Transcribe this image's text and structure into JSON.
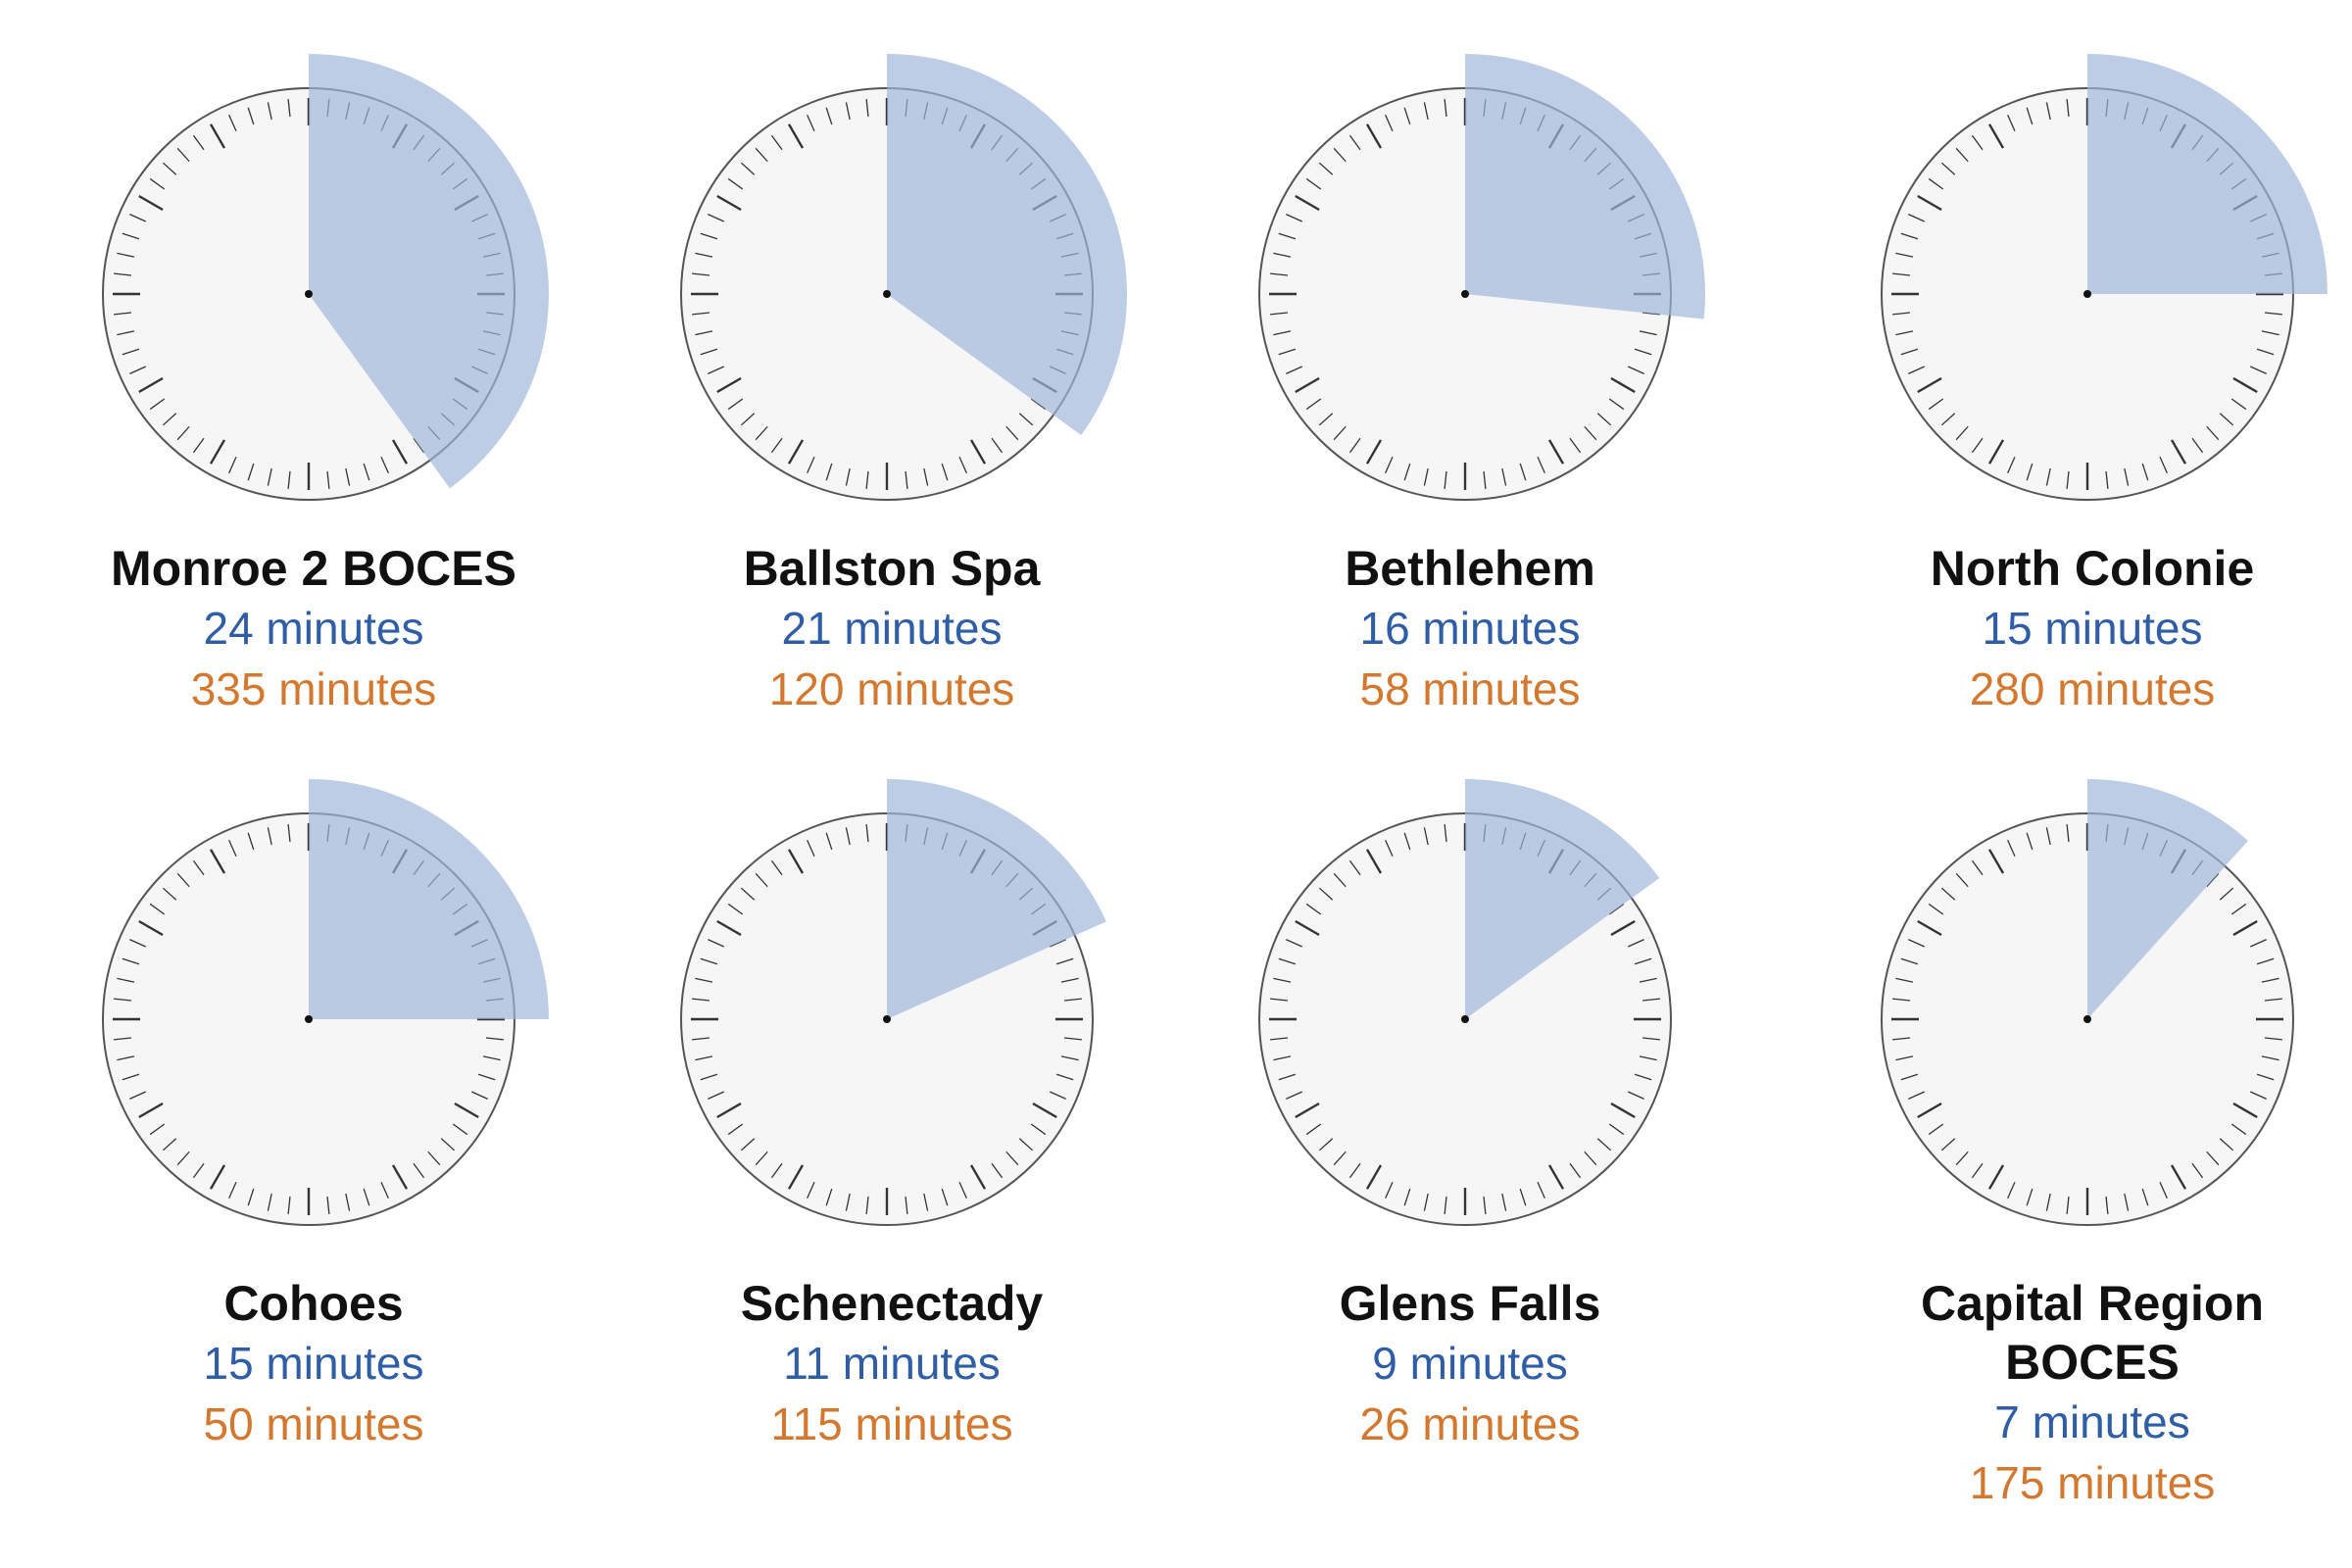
{
  "colors": {
    "wedge": "#9db5d9",
    "face": "#f6f6f6",
    "rim": "#555555",
    "ticks": "#333333",
    "value_primary": "#2f5ea6",
    "value_secondary": "#d3782e"
  },
  "chart_data": {
    "type": "clock",
    "dial_max_minutes": 60,
    "items": [
      {
        "name": "Monroe 2 BOCES",
        "primary_minutes": 24,
        "primary_label": "24 minutes",
        "secondary_minutes": 335,
        "secondary_label": "335 minutes"
      },
      {
        "name": "Ballston Spa",
        "primary_minutes": 21,
        "primary_label": "21 minutes",
        "secondary_minutes": 120,
        "secondary_label": "120 minutes"
      },
      {
        "name": "Bethlehem",
        "primary_minutes": 16,
        "primary_label": "16 minutes",
        "secondary_minutes": 58,
        "secondary_label": "58 minutes"
      },
      {
        "name": "North Colonie",
        "primary_minutes": 15,
        "primary_label": "15 minutes",
        "secondary_minutes": 280,
        "secondary_label": "280 minutes"
      },
      {
        "name": "Cohoes",
        "primary_minutes": 15,
        "primary_label": "15 minutes",
        "secondary_minutes": 50,
        "secondary_label": "50 minutes"
      },
      {
        "name": "Schenectady",
        "primary_minutes": 11,
        "primary_label": "11 minutes",
        "secondary_minutes": 115,
        "secondary_label": "115 minutes"
      },
      {
        "name": "Glens Falls",
        "primary_minutes": 9,
        "primary_label": "9 minutes",
        "secondary_minutes": 26,
        "secondary_label": "26 minutes"
      },
      {
        "name": "Capital Region BOCES",
        "primary_minutes": 7,
        "primary_label": "7 minutes",
        "secondary_minutes": 175,
        "secondary_label": "175 minutes"
      }
    ]
  }
}
